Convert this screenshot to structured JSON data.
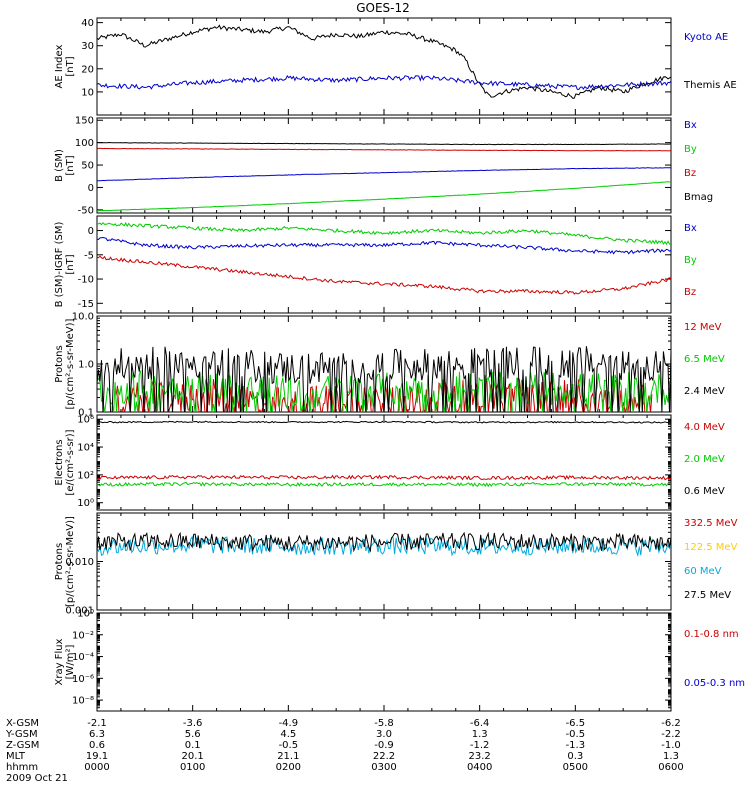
{
  "title": "GOES-12",
  "time_axis": {
    "ticks": [
      "0000",
      "0100",
      "0200",
      "0300",
      "0400",
      "0500",
      "0600"
    ],
    "date": "2009 Oct 21"
  },
  "ephemeris": {
    "rows": [
      {
        "name": "X-GSM",
        "values": [
          "-2.1",
          "-3.6",
          "-4.9",
          "-5.8",
          "-6.4",
          "-6.5",
          "-6.2"
        ]
      },
      {
        "name": "Y-GSM",
        "values": [
          "6.3",
          "5.6",
          "4.5",
          "3.0",
          "1.3",
          "-0.5",
          "-2.2"
        ]
      },
      {
        "name": "Z-GSM",
        "values": [
          "0.6",
          "0.1",
          "-0.5",
          "-0.9",
          "-1.2",
          "-1.3",
          "-1.0"
        ]
      },
      {
        "name": "MLT",
        "values": [
          "19.1",
          "20.1",
          "21.1",
          "22.2",
          "23.2",
          "0.3",
          "1.3"
        ]
      },
      {
        "name": "hhmm",
        "values": [
          "0000",
          "0100",
          "0200",
          "0300",
          "0400",
          "0500",
          "0600"
        ]
      }
    ]
  },
  "chart_data": [
    {
      "type": "line",
      "ylabel": [
        "AE Index",
        "[nT]"
      ],
      "scale": "linear",
      "ylim": [
        0,
        42
      ],
      "yticks": [
        {
          "v": 10,
          "label": "10"
        },
        {
          "v": 20,
          "label": "20"
        },
        {
          "v": 30,
          "label": "30"
        },
        {
          "v": 40,
          "label": "40"
        }
      ],
      "series": [
        {
          "name": "Kyoto AE",
          "color": "#000000",
          "x": [
            0,
            0.25,
            0.5,
            0.75,
            1,
            1.25,
            1.5,
            1.75,
            2,
            2.25,
            2.5,
            2.75,
            3,
            3.25,
            3.5,
            3.75,
            3.85,
            4,
            4.1,
            4.25,
            4.5,
            4.75,
            5,
            5.25,
            5.5,
            5.75,
            6
          ],
          "y": [
            33,
            35,
            30,
            33,
            36,
            38,
            37,
            36,
            38,
            33,
            35,
            34,
            36,
            35,
            32,
            28,
            24,
            13,
            8,
            10,
            12,
            10,
            8,
            12,
            10,
            14,
            17
          ]
        },
        {
          "name": "Themis AE",
          "color": "#0000cc",
          "x": [
            0,
            0.5,
            1,
            1.5,
            2,
            2.5,
            3,
            3.5,
            4,
            4.5,
            5,
            5.5,
            6
          ],
          "y": [
            13,
            12,
            14,
            15,
            16,
            15,
            16,
            16,
            14,
            13,
            12,
            13,
            14
          ]
        }
      ],
      "legend_colors": [
        "#0000cc",
        "#000000"
      ]
    },
    {
      "type": "line",
      "ylabel": [
        "B (SM)",
        "[nT]"
      ],
      "scale": "linear",
      "ylim": [
        -57,
        155
      ],
      "yticks": [
        {
          "v": -50,
          "label": "-50"
        },
        {
          "v": 0,
          "label": "0"
        },
        {
          "v": 50,
          "label": "50"
        },
        {
          "v": 100,
          "label": "100"
        },
        {
          "v": 150,
          "label": "150"
        }
      ],
      "series": [
        {
          "name": "Bx",
          "color": "#0000cc",
          "x": [
            0,
            1,
            2,
            3,
            4,
            5,
            6
          ],
          "y": [
            15,
            22,
            28,
            33,
            38,
            42,
            44
          ]
        },
        {
          "name": "By",
          "color": "#00cc00",
          "x": [
            0,
            1,
            2,
            3,
            4,
            5,
            6
          ],
          "y": [
            -52,
            -45,
            -36,
            -26,
            -15,
            -2,
            13
          ]
        },
        {
          "name": "Bz",
          "color": "#cc0000",
          "x": [
            0,
            1,
            2,
            3,
            4,
            5,
            6
          ],
          "y": [
            87,
            86,
            85,
            84,
            83,
            82,
            82
          ]
        },
        {
          "name": "Bmag",
          "color": "#000000",
          "x": [
            0,
            1,
            2,
            3,
            4,
            5,
            6
          ],
          "y": [
            100,
            99,
            98,
            97,
            96,
            96,
            97
          ]
        }
      ]
    },
    {
      "type": "line",
      "ylabel": [
        "B (SM)-IGRF (SM)",
        "[nT]"
      ],
      "scale": "linear",
      "ylim": [
        -17,
        3
      ],
      "yticks": [
        {
          "v": -15,
          "label": "-15"
        },
        {
          "v": -10,
          "label": "-10"
        },
        {
          "v": -5,
          "label": "-5"
        },
        {
          "v": 0,
          "label": "0"
        }
      ],
      "series": [
        {
          "name": "Bx",
          "color": "#0000cc",
          "x": [
            0,
            0.5,
            1,
            1.5,
            2,
            2.5,
            3,
            3.5,
            4,
            4.5,
            5,
            5.5,
            6
          ],
          "y": [
            -1.5,
            -3,
            -3.5,
            -3.2,
            -3,
            -3,
            -3,
            -2.5,
            -3,
            -3.5,
            -4.2,
            -4.5,
            -4
          ]
        },
        {
          "name": "By",
          "color": "#00cc00",
          "x": [
            0,
            0.5,
            1,
            1.5,
            2,
            2.5,
            3,
            3.5,
            4,
            4.5,
            5,
            5.5,
            6
          ],
          "y": [
            1.5,
            1,
            0.5,
            0,
            0.5,
            0,
            -0.5,
            0,
            -0.5,
            0,
            -1,
            -2,
            -2.5
          ]
        },
        {
          "name": "Bz",
          "color": "#cc0000",
          "x": [
            0,
            0.5,
            1,
            1.5,
            2,
            2.5,
            3,
            3.5,
            4,
            4.5,
            5,
            5.5,
            6
          ],
          "y": [
            -5.5,
            -6.5,
            -7.5,
            -8.5,
            -9.5,
            -10.5,
            -11,
            -11.5,
            -12.5,
            -12.5,
            -12.8,
            -12,
            -10
          ]
        }
      ]
    },
    {
      "type": "line",
      "ylabel": [
        "Protons",
        "[p/(cm²-s-sr-MeV)]"
      ],
      "scale": "log",
      "ylim": [
        0.1,
        10
      ],
      "yticks": [
        {
          "v": 0.1,
          "label": "0.1"
        },
        {
          "v": 1,
          "label": "1.0"
        },
        {
          "v": 10,
          "label": "10.0"
        }
      ],
      "series": [
        {
          "name": "12 MeV",
          "color": "#cc0000",
          "x": [
            0.2,
            0.8,
            1.2,
            1.9,
            3.2,
            4.6,
            5.5,
            5.8
          ],
          "y": [
            0.2,
            0.18,
            0.22,
            0.15,
            0.2,
            0.25,
            0.2,
            0.18
          ]
        },
        {
          "name": "6.5 MeV",
          "color": "#00cc00",
          "x": [
            0,
            1,
            2,
            3,
            4,
            5,
            6
          ],
          "y": [
            0.3,
            0.35,
            0.25,
            0.3,
            0.35,
            0.3,
            0.3
          ]
        },
        {
          "name": "2.4 MeV",
          "color": "#000000",
          "x": [
            0,
            1,
            2,
            3,
            4,
            5,
            6
          ],
          "y": [
            0.9,
            1.1,
            0.8,
            0.9,
            1.0,
            1.1,
            0.9
          ]
        }
      ]
    },
    {
      "type": "line",
      "ylabel": [
        "Electrons",
        "[e/(cm²-s-sr)]"
      ],
      "scale": "log",
      "ylim": [
        0.3,
        2000000.0
      ],
      "yticks": [
        {
          "v": 1,
          "label": "10⁰"
        },
        {
          "v": 100,
          "label": "10²"
        },
        {
          "v": 10000,
          "label": "10⁴"
        },
        {
          "v": 1000000,
          "label": "10⁶"
        }
      ],
      "series": [
        {
          "name": "4.0 MeV",
          "color": "#cc0000",
          "x": [
            0,
            1,
            2,
            3,
            4,
            5,
            6
          ],
          "y": [
            60,
            70,
            65,
            70,
            60,
            65,
            60
          ]
        },
        {
          "name": "2.0 MeV",
          "color": "#00cc00",
          "x": [
            0,
            1,
            2,
            3,
            4,
            5,
            6
          ],
          "y": [
            20,
            22,
            20,
            21,
            20,
            22,
            20
          ]
        },
        {
          "name": "0.6 MeV",
          "color": "#000000",
          "x": [
            0,
            1,
            2,
            3,
            4,
            5,
            6
          ],
          "y": [
            600000,
            650000,
            620000,
            640000,
            600000,
            620000,
            580000
          ]
        }
      ]
    },
    {
      "type": "line",
      "ylabel": [
        "Protons",
        "[p/(cm²-s-sr-MeV)]"
      ],
      "scale": "log",
      "ylim": [
        0.001,
        0.1
      ],
      "yticks": [
        {
          "v": 0.001,
          "label": "0.001"
        },
        {
          "v": 0.01,
          "label": "0.010"
        }
      ],
      "series": [
        {
          "name": "332.5 MeV",
          "color": "#cc0000",
          "x": [],
          "y": []
        },
        {
          "name": "122.5 MeV",
          "color": "#ffcc00",
          "x": [],
          "y": []
        },
        {
          "name": "60 MeV",
          "color": "#00aadd",
          "x": [
            0,
            1,
            2,
            3,
            4,
            5,
            6
          ],
          "y": [
            0.02,
            0.022,
            0.02,
            0.021,
            0.02,
            0.021,
            0.02
          ]
        },
        {
          "name": "27.5 MeV",
          "color": "#000000",
          "x": [
            0,
            1,
            2,
            3,
            4,
            5,
            6
          ],
          "y": [
            0.025,
            0.026,
            0.024,
            0.025,
            0.026,
            0.025,
            0.024
          ]
        }
      ]
    },
    {
      "type": "line",
      "ylabel": [
        "Xray Flux",
        "[W/m²]"
      ],
      "scale": "log",
      "ylim": [
        1e-09,
        1
      ],
      "yticks": [
        {
          "v": 1e-08,
          "label": "10⁻⁸"
        },
        {
          "v": 1e-06,
          "label": "10⁻⁶"
        },
        {
          "v": 0.0001,
          "label": "10⁻⁴"
        },
        {
          "v": 0.01,
          "label": "10⁻²"
        },
        {
          "v": 1,
          "label": "10⁰"
        }
      ],
      "series": [
        {
          "name": "0.1-0.8 nm",
          "color": "#cc0000",
          "x": [],
          "y": []
        },
        {
          "name": "0.05-0.3 nm",
          "color": "#0000cc",
          "x": [],
          "y": []
        }
      ]
    }
  ]
}
